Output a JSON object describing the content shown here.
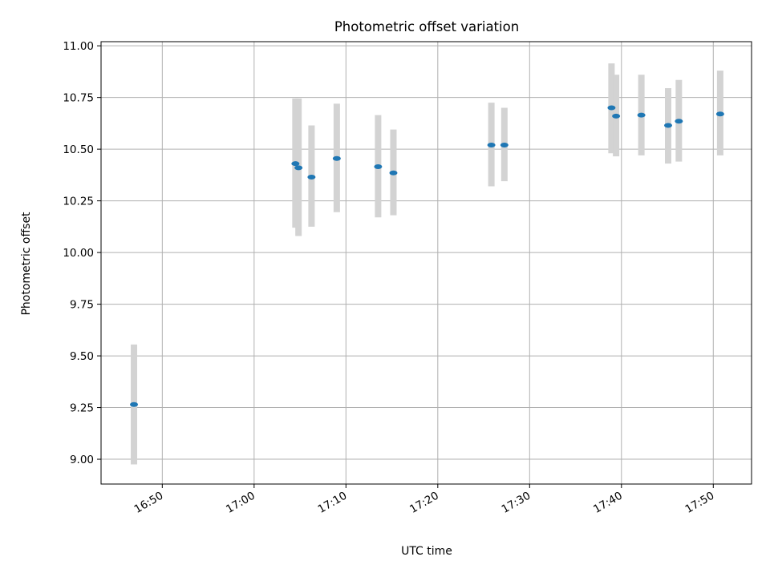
{
  "chart_data": {
    "type": "scatter",
    "title": "Photometric offset variation",
    "xlabel": "UTC time",
    "ylabel": "Photometric offset",
    "xlim": [
      "16:43:20",
      "17:54:10"
    ],
    "ylim": [
      8.88,
      11.02
    ],
    "x_ticks": [
      "16:50",
      "17:00",
      "17:10",
      "17:20",
      "17:30",
      "17:40",
      "17:50"
    ],
    "y_ticks": [
      "9.00",
      "9.25",
      "9.50",
      "9.75",
      "10.00",
      "10.25",
      "10.50",
      "10.75",
      "11.00"
    ],
    "grid": true,
    "colors": {
      "marker": "#1f77b4",
      "errorbar": "#d3d3d3",
      "grid": "#b0b0b0"
    },
    "points": [
      {
        "x": "16:46:55",
        "y": 9.265,
        "ylo": 8.975,
        "yhi": 9.555
      },
      {
        "x": "17:04:30",
        "y": 10.43,
        "ylo": 10.12,
        "yhi": 10.745
      },
      {
        "x": "17:04:50",
        "y": 10.41,
        "ylo": 10.08,
        "yhi": 10.745
      },
      {
        "x": "17:06:15",
        "y": 10.365,
        "ylo": 10.125,
        "yhi": 10.615
      },
      {
        "x": "17:09:00",
        "y": 10.455,
        "ylo": 10.195,
        "yhi": 10.72
      },
      {
        "x": "17:13:30",
        "y": 10.415,
        "ylo": 10.17,
        "yhi": 10.665
      },
      {
        "x": "17:15:10",
        "y": 10.385,
        "ylo": 10.18,
        "yhi": 10.595
      },
      {
        "x": "17:25:50",
        "y": 10.52,
        "ylo": 10.32,
        "yhi": 10.725
      },
      {
        "x": "17:27:15",
        "y": 10.52,
        "ylo": 10.345,
        "yhi": 10.7
      },
      {
        "x": "17:38:55",
        "y": 10.7,
        "ylo": 10.48,
        "yhi": 10.915
      },
      {
        "x": "17:39:25",
        "y": 10.66,
        "ylo": 10.465,
        "yhi": 10.86
      },
      {
        "x": "17:42:10",
        "y": 10.665,
        "ylo": 10.47,
        "yhi": 10.86
      },
      {
        "x": "17:45:05",
        "y": 10.615,
        "ylo": 10.43,
        "yhi": 10.795
      },
      {
        "x": "17:46:15",
        "y": 10.635,
        "ylo": 10.44,
        "yhi": 10.835
      },
      {
        "x": "17:50:45",
        "y": 10.67,
        "ylo": 10.47,
        "yhi": 10.88
      }
    ]
  }
}
